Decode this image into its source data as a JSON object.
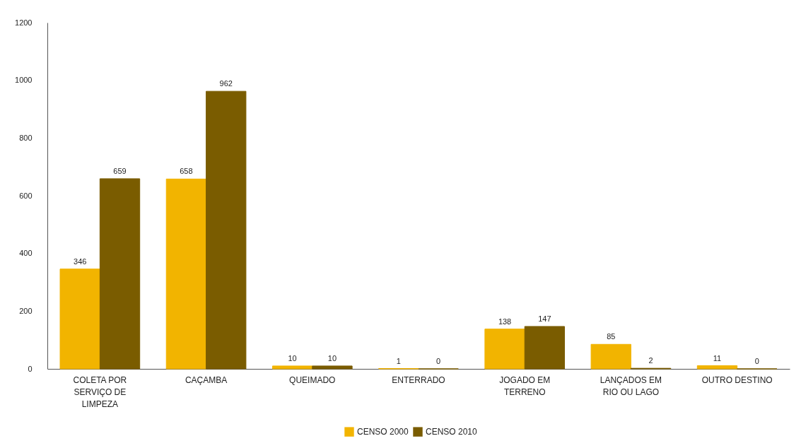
{
  "chart_data": {
    "type": "bar",
    "categories": [
      "COLETA POR SERVIÇO DE LIMPEZA",
      "CAÇAMBA",
      "QUEIMADO",
      "ENTERRADO",
      "JOGADO EM TERRENO",
      "LANÇADOS EM RIO OU LAGO",
      "OUTRO DESTINO"
    ],
    "series": [
      {
        "name": "CENSO 2000",
        "color": "#f2b400",
        "values": [
          346,
          658,
          10,
          1,
          138,
          85,
          11
        ]
      },
      {
        "name": "CENSO 2010",
        "color": "#7a5c00",
        "values": [
          659,
          962,
          10,
          0,
          147,
          2,
          0
        ]
      }
    ],
    "ylim": [
      0,
      1200
    ],
    "yticks": [
      0,
      200,
      400,
      600,
      800,
      1000,
      1200
    ],
    "legend": "bottom",
    "data_labels": true
  }
}
